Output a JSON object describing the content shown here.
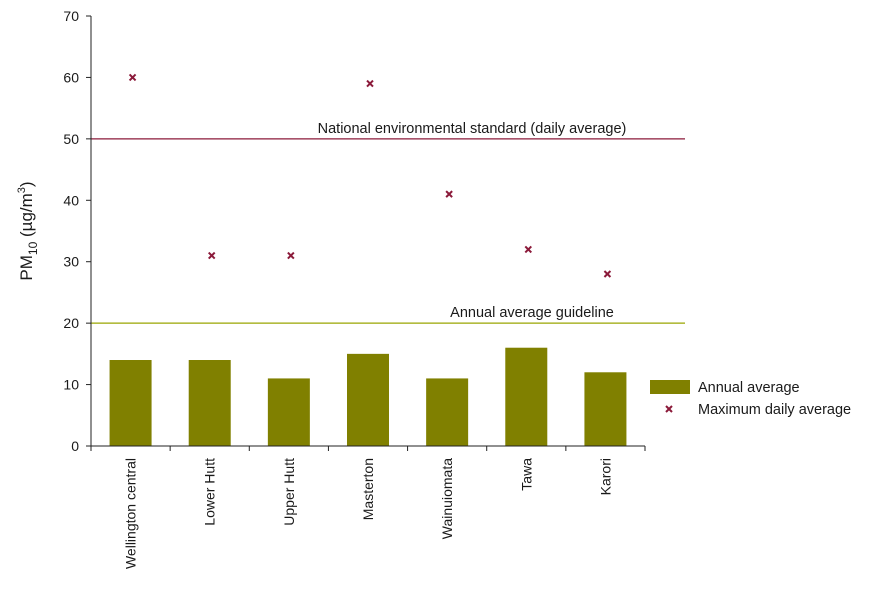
{
  "chart_data": {
    "type": "bar",
    "categories": [
      "Wellington central",
      "Lower Hutt",
      "Upper Hutt",
      "Masterton",
      "Wainuiomata",
      "Tawa",
      "Karori"
    ],
    "series": [
      {
        "name": "Annual average",
        "kind": "bar",
        "color": "#808000",
        "values": [
          14,
          14,
          11,
          15,
          11,
          16,
          12
        ]
      },
      {
        "name": "Maximum daily average",
        "kind": "marker",
        "color": "#8b1a3a",
        "values": [
          60,
          31,
          31,
          59,
          41,
          32,
          28
        ]
      }
    ],
    "reference_lines": [
      {
        "label": "National environmental standard (daily average)",
        "value": 50,
        "color": "#8b1a3a"
      },
      {
        "label": "Annual average guideline",
        "value": 20,
        "color": "#9aa600"
      }
    ],
    "ylabel": {
      "main": "PM",
      "sub": "10",
      "unit_open": " (µg/m",
      "sup": "3",
      "unit_close": ")"
    },
    "ylim": [
      0,
      70
    ],
    "yticks": [
      0,
      10,
      20,
      30,
      40,
      50,
      60,
      70
    ],
    "legend_position": "right",
    "grid": false
  }
}
